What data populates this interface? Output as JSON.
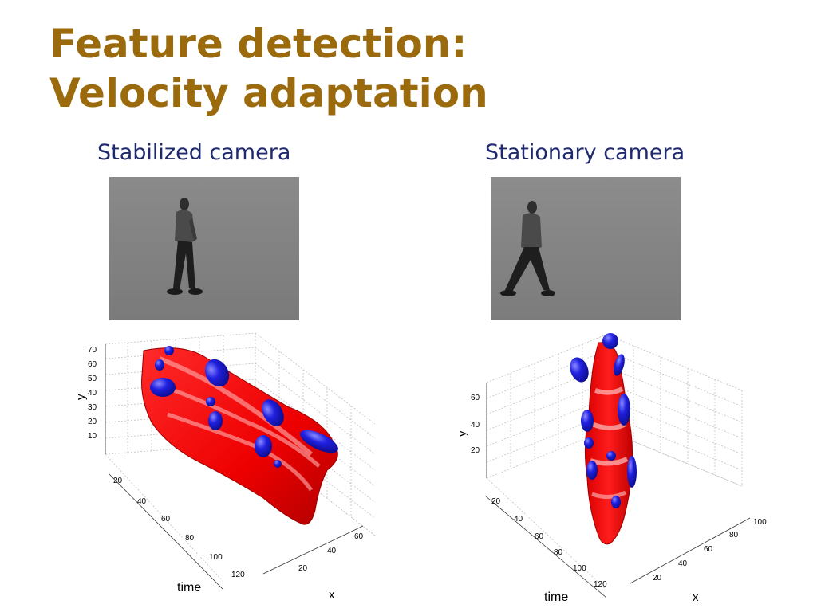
{
  "slide": {
    "title_line1": "Feature detection:",
    "title_line2": "Velocity adaptation"
  },
  "panels": [
    {
      "caption": "Stabilized camera",
      "plot": {
        "y_label": "y",
        "time_label": "time",
        "x_label": "x",
        "y_ticks": [
          "70",
          "60",
          "50",
          "40",
          "30",
          "20",
          "10"
        ],
        "time_ticks": [
          "20",
          "40",
          "60",
          "80",
          "100",
          "120"
        ],
        "x_ticks": [
          "60",
          "40",
          "20"
        ]
      }
    },
    {
      "caption": "Stationary camera",
      "plot": {
        "y_label": "y",
        "time_label": "time",
        "x_label": "x",
        "y_ticks": [
          "60",
          "40",
          "20"
        ],
        "time_ticks": [
          "20",
          "40",
          "60",
          "80",
          "100",
          "120"
        ],
        "x_ticks": [
          "100",
          "80",
          "60",
          "40",
          "20"
        ]
      }
    }
  ]
}
